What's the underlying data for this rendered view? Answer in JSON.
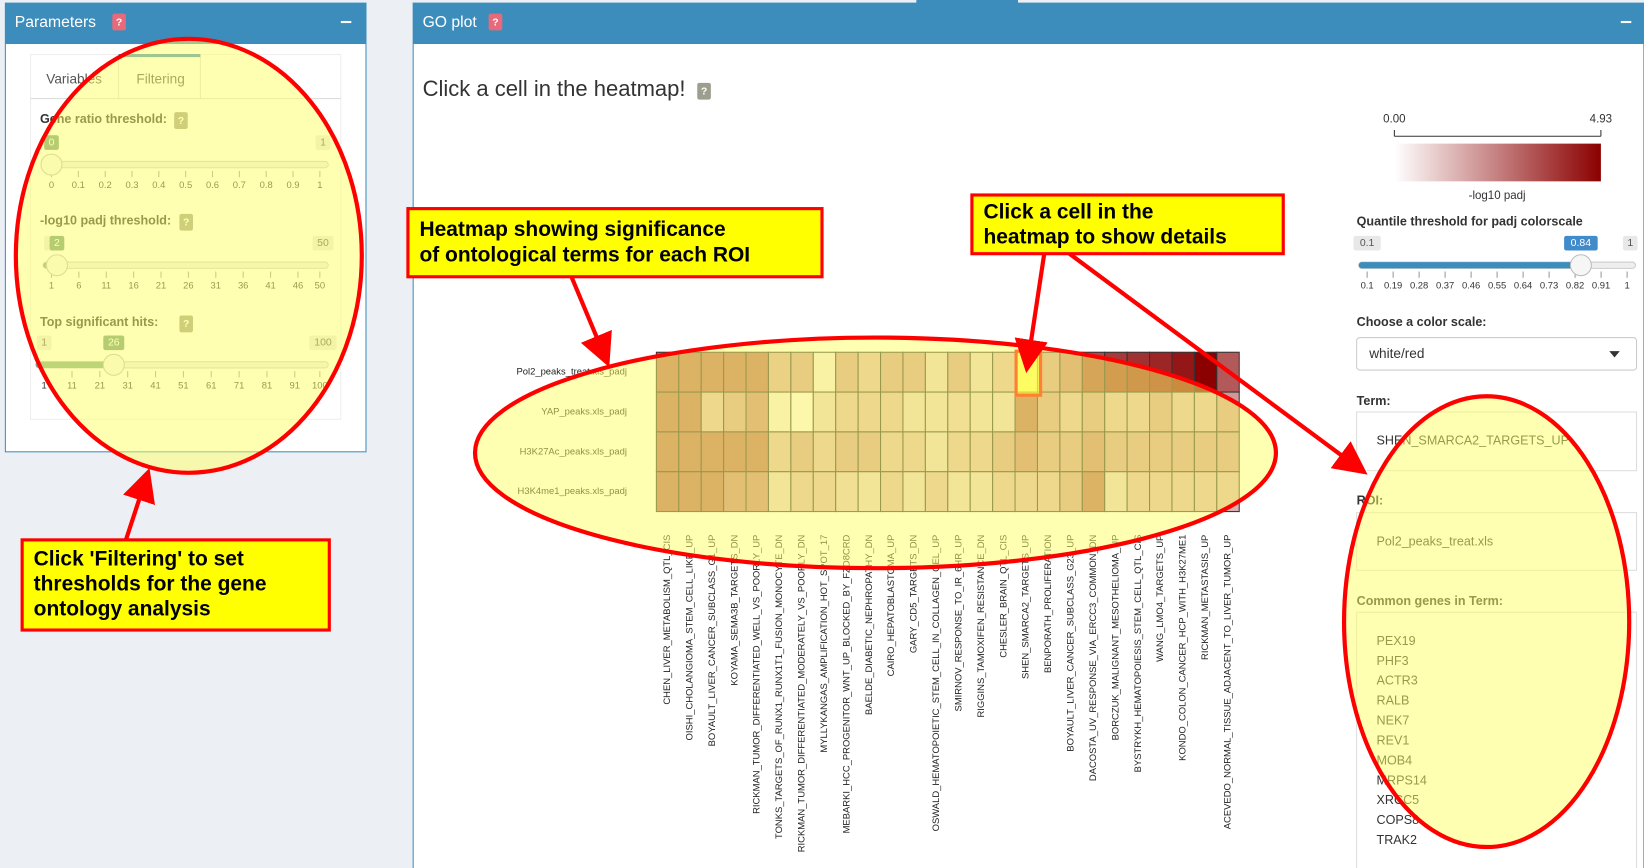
{
  "left_panel": {
    "title": "Parameters",
    "help": "?",
    "tabs": [
      "Variables",
      "Filtering"
    ],
    "sliders": [
      {
        "label": "Gene ratio threshold:",
        "help": "?",
        "min": 0,
        "max": 1,
        "value": 0,
        "ticks": [
          0,
          0.1,
          0.2,
          0.3,
          0.4,
          0.5,
          0.6,
          0.7,
          0.8,
          0.9,
          1
        ]
      },
      {
        "label": "-log10 padj threshold:",
        "help": "?",
        "min": 1,
        "max": 50,
        "value": 2,
        "ticks": [
          1,
          6,
          11,
          16,
          21,
          26,
          31,
          36,
          41,
          46,
          50
        ]
      },
      {
        "label": "Top significant hits:",
        "help": "?",
        "min": 1,
        "max": 100,
        "value": 26,
        "ticks": [
          1,
          11,
          21,
          31,
          41,
          51,
          61,
          71,
          81,
          91,
          100
        ]
      }
    ]
  },
  "right_panel": {
    "title": "GO plot",
    "help": "?",
    "heading": "Click a cell in the heatmap!",
    "heading_help": "?",
    "colorbar": {
      "ticks": [
        {
          "value": 0,
          "label": "0.00"
        },
        {
          "value": 4.93,
          "label": "4.93"
        }
      ],
      "label": "-log10 padj"
    },
    "quantile_slider": {
      "label": "Quantile threshold for padj colorscale",
      "min": 0.1,
      "max": 1,
      "value": 0.84,
      "ticks": [
        0.1,
        0.19,
        0.28,
        0.37,
        0.46,
        0.55,
        0.64,
        0.73,
        0.82,
        0.91,
        1
      ]
    },
    "color_scale": {
      "label": "Choose a color scale:",
      "value": "white/red"
    },
    "term": {
      "label": "Term:",
      "value": "SHEN_SMARCA2_TARGETS_UP"
    },
    "roi": {
      "label": "ROI:",
      "value": "Pol2_peaks_treat.xls"
    },
    "genes": {
      "label": "Common genes in Term:",
      "items": [
        "PEX19",
        "PHF3",
        "ACTR3",
        "RALB",
        "NEK7",
        "REV1",
        "MOB4",
        "MRPS14",
        "XRCC5",
        "COPS8",
        "TRAK2"
      ]
    }
  },
  "heatmap": {
    "rows": [
      "Pol2_peaks_treat.xls_padj",
      "YAP_peaks.xls_padj",
      "H3K27Ac_peaks.xls_padj",
      "H3K4me1_peaks.xls_padj"
    ],
    "columns": [
      "CHEN_LIVER_METABOLISM_QTL_CIS",
      "OISHI_CHOLANGIOMA_STEM_CELL_LIKE_UP",
      "BOYAULT_LIVER_CANCER_SUBCLASS_G1_UP",
      "KOYAMA_SEMA3B_TARGETS_DN",
      "RICKMAN_TUMOR_DIFFERENTIATED_WELL_VS_POORLY_UP",
      "TONKS_TARGETS_OF_RUNX1_RUNX1T1_FUSION_MONOCYTE_DN",
      "RICKMAN_TUMOR_DIFFERENTIATED_MODERATELY_VS_POORLY_DN",
      "MYLLYKANGAS_AMPLIFICATION_HOT_SPOT_17",
      "MEBARKI_HCC_PROGENITOR_WNT_UP_BLOCKED_BY_FZD8CRD",
      "BAELDE_DIABETIC_NEPHROPATHY_DN",
      "CAIRO_HEPATOBLASTOMA_UP",
      "GARY_CD5_TARGETS_DN",
      "OSWALD_HEMATOPOIETIC_STEM_CELL_IN_COLLAGEN_GEL_UP",
      "SMIRNOV_RESPONSE_TO_IR_6HR_UP",
      "RIGGINS_TAMOXIFEN_RESISTANCE_DN",
      "CHESLER_BRAIN_QTL_CIS",
      "SHEN_SMARCA2_TARGETS_UP",
      "BENPORATH_PROLIFERATION",
      "BOYAULT_LIVER_CANCER_SUBCLASS_G23_UP",
      "DACOSTA_UV_RESPONSE_VIA_ERCC3_COMMON_DN",
      "BORCZUK_MALIGNANT_MESOTHELIOMA_UP",
      "BYSTRYKH_HEMATOPOIESIS_STEM_CELL_QTL_CIS",
      "WANG_LMO4_TARGETS_UP",
      "KONDO_COLON_CANCER_HCP_WITH_H3K27ME1",
      "RICKMAN_METASTASIS_UP",
      "ACEVEDO_NORMAL_TISSUE_ADJACENT_TO_LIVER_TUMOR_UP"
    ],
    "values": [
      [
        3,
        3,
        3,
        3,
        3,
        1.8,
        2,
        0.5,
        2,
        1.5,
        2,
        2,
        1,
        2,
        1,
        1.5,
        0.3,
        2,
        2.5,
        3.5,
        3.8,
        4,
        4.2,
        4.5,
        4.93,
        3.2
      ],
      [
        3,
        3,
        1.5,
        2,
        2.5,
        0.5,
        0.3,
        1,
        1.5,
        1.5,
        1.5,
        1,
        1,
        1.2,
        1,
        1,
        3,
        2,
        1.5,
        2,
        1.5,
        1.5,
        2,
        1.5,
        1.5,
        2
      ],
      [
        3,
        3,
        3,
        3,
        3,
        1.5,
        2,
        1.5,
        2,
        2,
        1.5,
        1.5,
        1,
        1.5,
        1.5,
        2,
        2.5,
        2,
        2,
        2.5,
        2,
        2,
        2,
        2,
        2,
        2
      ],
      [
        3,
        3,
        3,
        2.5,
        2.5,
        1,
        1.5,
        1.5,
        1.2,
        1,
        1.5,
        1,
        1.5,
        1,
        1,
        1.5,
        1.5,
        1.5,
        2,
        3,
        1,
        1.5,
        1.5,
        1.5,
        1.5,
        1.5
      ]
    ]
  },
  "annotations": [
    {
      "lines": [
        "Heatmap showing significance",
        "of ontological terms for each ROI"
      ]
    },
    {
      "lines": [
        "Click a cell in the",
        "heatmap to show details"
      ]
    },
    {
      "lines": [
        "Click 'Filtering' to set",
        "thresholds for the gene",
        "ontology analysis"
      ]
    }
  ]
}
